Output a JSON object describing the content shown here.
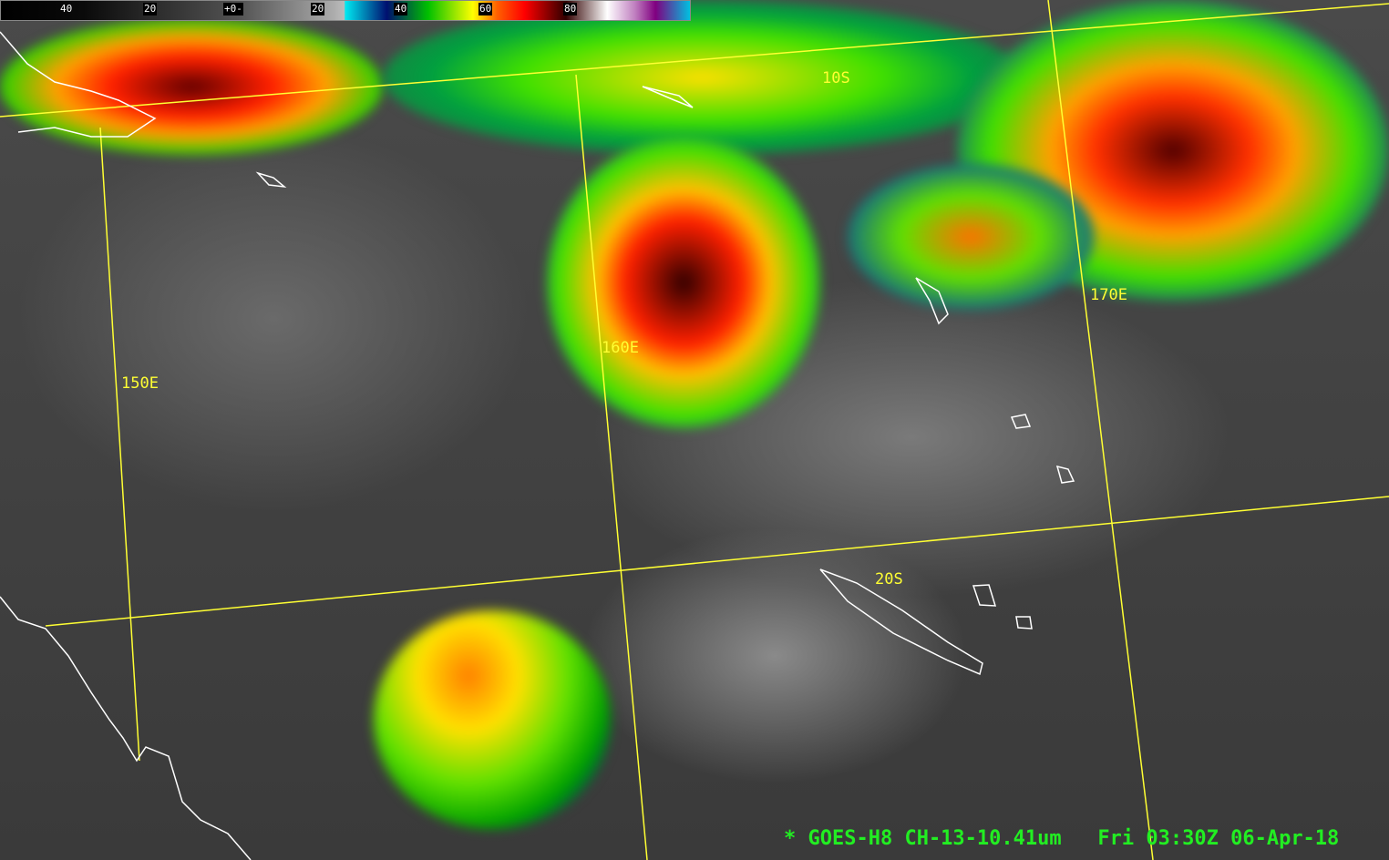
{
  "colorbar": {
    "labels": [
      "40",
      "20",
      "+0-",
      "20",
      "40",
      "60",
      "80"
    ]
  },
  "grid_labels": {
    "lat_10s": "10S",
    "lat_20s": "20S",
    "lon_150e": "150E",
    "lon_160e": "160E",
    "lon_170e": "170E"
  },
  "caption": {
    "satellite": "* GOES-H8 CH-13-10.41um",
    "datetime": "Fri 03:30Z 06-Apr-18"
  },
  "colors": {
    "gridlines": "#ffff33",
    "caption": "#22ee22",
    "coastline": "#ffffff"
  }
}
